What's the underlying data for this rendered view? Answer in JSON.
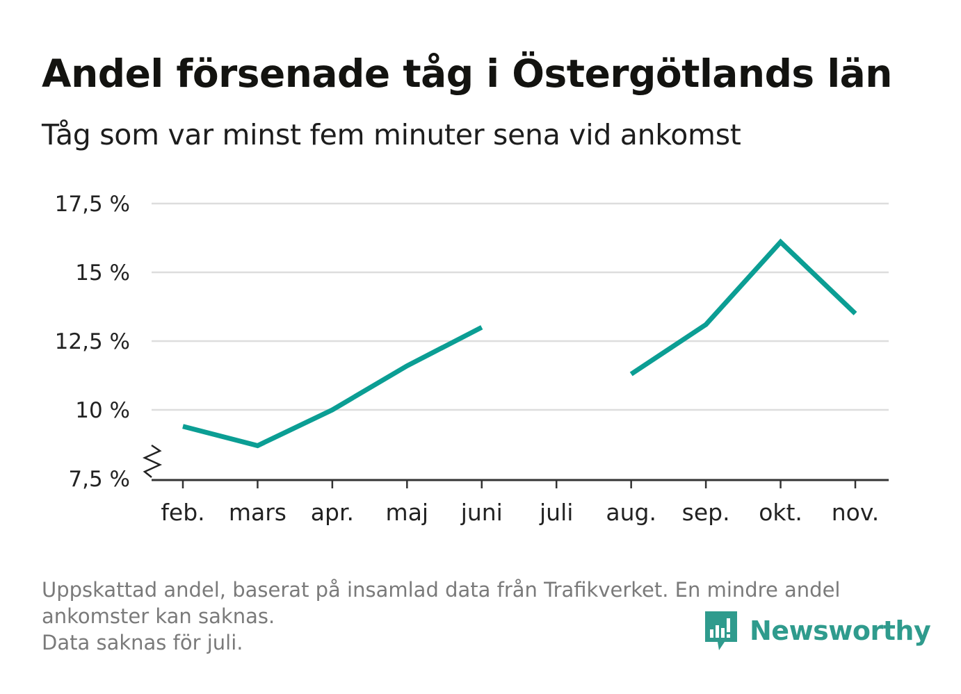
{
  "header": {
    "title": "Andel försenade tåg i Östergötlands län",
    "subtitle": "Tåg som var minst fem minuter sena vid ankomst"
  },
  "chart_data": {
    "type": "line",
    "categories": [
      "feb.",
      "mars",
      "apr.",
      "maj",
      "juni",
      "juli",
      "aug.",
      "sep.",
      "okt.",
      "nov."
    ],
    "series": [
      {
        "values": [
          9.4,
          8.7,
          10.0,
          11.6,
          13.0,
          null,
          11.3,
          13.1,
          16.1,
          13.5
        ]
      }
    ],
    "y_ticks": [
      7.5,
      10,
      12.5,
      15,
      17.5
    ],
    "y_tick_labels": [
      "7,5 %",
      "10 %",
      "12,5 %",
      "15 %",
      "17,5 %"
    ],
    "ylim": [
      7.5,
      17.5
    ],
    "y_axis_break": true,
    "grid": true,
    "colors": {
      "line": "#0b9e94",
      "grid": "#dddddd",
      "axis": "#333333"
    }
  },
  "footer": {
    "notes": [
      "Uppskattad andel, baserat på insamlad data från Trafikverket. En mindre andel",
      "ankomster kan saknas.",
      "Data saknas för juli."
    ],
    "brand": "Newsworthy",
    "brand_color": "#2f9b8d"
  }
}
